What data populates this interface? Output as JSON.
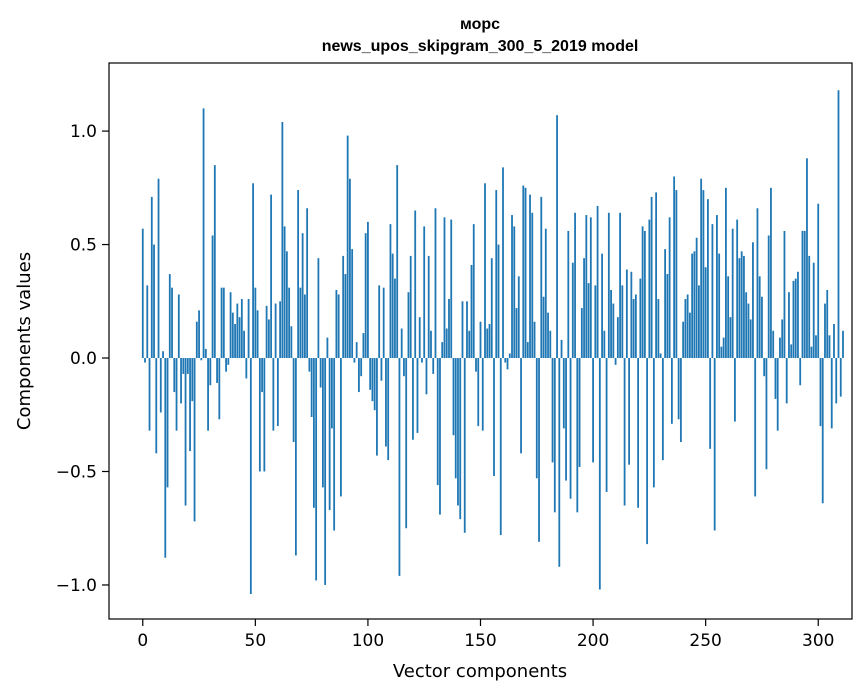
{
  "chart_data": {
    "type": "bar",
    "title": "морс",
    "subtitle": "news_upos_skipgram_300_5_2019 model",
    "xlabel": "Vector components",
    "ylabel": "Components values",
    "xlim": [
      -15,
      315
    ],
    "ylim": [
      -1.15,
      1.3
    ],
    "x_ticks": [
      {
        "value": 0,
        "label": "0"
      },
      {
        "value": 50,
        "label": "50"
      },
      {
        "value": 100,
        "label": "100"
      },
      {
        "value": 150,
        "label": "150"
      },
      {
        "value": 200,
        "label": "200"
      },
      {
        "value": 250,
        "label": "250"
      },
      {
        "value": 300,
        "label": "300"
      }
    ],
    "y_ticks": [
      {
        "value": -1.0,
        "label": "−1.0"
      },
      {
        "value": -0.5,
        "label": "−0.5"
      },
      {
        "value": 0.0,
        "label": "0.0"
      },
      {
        "value": 0.5,
        "label": "0.5"
      },
      {
        "value": 1.0,
        "label": "1.0"
      }
    ],
    "grid": false,
    "bar_color": "#1f77b4",
    "values": [
      0.57,
      -0.02,
      0.32,
      -0.32,
      0.71,
      0.5,
      -0.42,
      0.79,
      -0.24,
      0.03,
      -0.88,
      -0.57,
      0.37,
      0.31,
      -0.15,
      -0.32,
      0.28,
      -0.2,
      -0.07,
      -0.65,
      -0.07,
      -0.41,
      -0.19,
      -0.72,
      0.16,
      0.21,
      -0.01,
      1.1,
      0.04,
      -0.32,
      -0.12,
      0.54,
      0.85,
      -0.11,
      -0.27,
      0.31,
      0.31,
      -0.06,
      -0.03,
      0.29,
      0.2,
      0.15,
      0.24,
      0.18,
      0.26,
      0.12,
      -0.09,
      0.26,
      -1.04,
      0.77,
      0.31,
      0.21,
      -0.5,
      -0.15,
      -0.5,
      0.23,
      0.17,
      0.72,
      -0.32,
      0.24,
      -0.3,
      0.25,
      1.04,
      0.58,
      0.47,
      0.31,
      0.14,
      -0.37,
      -0.87,
      0.74,
      0.31,
      0.55,
      0.28,
      0.66,
      -0.06,
      -0.26,
      -0.66,
      -0.98,
      0.44,
      -0.13,
      -0.57,
      -1.0,
      0.09,
      -0.67,
      -0.31,
      -0.76,
      0.3,
      0.28,
      -0.61,
      0.45,
      0.37,
      0.98,
      0.79,
      0.48,
      -0.02,
      0.07,
      -0.15,
      -0.08,
      0.11,
      0.55,
      0.6,
      -0.14,
      -0.19,
      -0.23,
      -0.43,
      0.32,
      -0.1,
      0.31,
      -0.39,
      -0.45,
      0.59,
      0.46,
      0.35,
      0.85,
      -0.96,
      0.13,
      -0.08,
      -0.75,
      0.29,
      0.45,
      -0.36,
      0.65,
      -0.33,
      0.18,
      -0.02,
      0.58,
      -0.16,
      0.45,
      0.12,
      -0.07,
      0.66,
      -0.56,
      -0.69,
      0.07,
      0.62,
      0.13,
      0.26,
      0.61,
      -0.34,
      -0.53,
      -0.65,
      -0.71,
      0.25,
      -0.77,
      0.25,
      0.12,
      0.41,
      0.59,
      -0.06,
      -0.3,
      0.16,
      -0.32,
      0.77,
      0.13,
      0.15,
      0.44,
      -0.52,
      0.74,
      0.5,
      -0.78,
      0.84,
      -0.02,
      -0.05,
      0.02,
      0.63,
      0.58,
      0.22,
      0.36,
      -0.42,
      0.76,
      0.75,
      0.07,
      0.72,
      0.64,
      0.16,
      -0.53,
      -0.81,
      0.71,
      0.27,
      0.57,
      0.2,
      0.12,
      -0.46,
      -0.68,
      1.07,
      -0.92,
      0.08,
      -0.31,
      -0.54,
      0.56,
      -0.62,
      0.42,
      0.64,
      -0.68,
      -0.48,
      0.22,
      0.44,
      0.63,
      0.33,
      0.62,
      -0.46,
      0.32,
      0.67,
      -1.02,
      0.46,
      0.12,
      -0.59,
      0.64,
      0.3,
      0.24,
      -0.03,
      0.18,
      0.64,
      0.32,
      -0.65,
      0.39,
      -0.47,
      0.38,
      0.26,
      0.28,
      -0.66,
      0.35,
      0.58,
      0.56,
      -0.82,
      0.61,
      0.71,
      -0.57,
      0.73,
      0.26,
      0.02,
      -0.45,
      0.48,
      0.37,
      0.62,
      -0.29,
      0.8,
      0.74,
      -0.27,
      -0.37,
      0.16,
      0.26,
      0.28,
      0.2,
      0.46,
      0.47,
      0.53,
      0.32,
      0.79,
      0.74,
      0.4,
      0.7,
      -0.4,
      0.59,
      -0.76,
      0.63,
      0.46,
      0.05,
      0.09,
      0.75,
      0.36,
      0.18,
      0.57,
      -0.28,
      0.61,
      0.44,
      0.47,
      0.45,
      0.29,
      0.24,
      0.17,
      0.51,
      -0.61,
      0.66,
      0.36,
      0.27,
      -0.08,
      -0.49,
      0.54,
      0.75,
      0.12,
      -0.18,
      -0.32,
      0.09,
      0.17,
      0.56,
      -0.2,
      0.29,
      0.06,
      0.34,
      0.35,
      0.38,
      -0.12,
      0.56,
      0.56,
      0.88,
      0.45,
      0.05,
      0.42,
      0.1,
      0.68,
      -0.3,
      -0.64,
      0.24,
      0.3,
      0.1,
      -0.31,
      0.15,
      -0.2,
      1.18,
      -0.17,
      0.12
    ]
  }
}
